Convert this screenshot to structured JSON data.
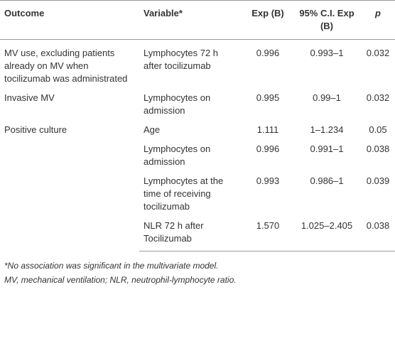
{
  "table": {
    "header": [
      "Outcome",
      "Variable*",
      "Exp (B)",
      "95% C.I. Exp (B)",
      "p"
    ],
    "groups": [
      {
        "outcome": "MV use, excluding patients already on MV when tocilizumab was administrated",
        "rows": [
          [
            "Lymphocytes 72 h after tocilizumab",
            "0.996",
            "0.993–1",
            "0.032"
          ]
        ]
      },
      {
        "outcome": "Invasive MV",
        "rows": [
          [
            "Lymphocytes on admission",
            "0.995",
            "0.99–1",
            "0.032"
          ]
        ]
      },
      {
        "outcome": "Positive culture",
        "rows": [
          [
            "Age",
            "1.111",
            "1–1.234",
            "0.05"
          ],
          [
            "Lymphocytes on admission",
            "0.996",
            "0.991–1",
            "0.038"
          ],
          [
            "Lymphocytes at the time of receiving tocilizumab",
            "0.993",
            "0.986–1",
            "0.039"
          ],
          [
            "NLR 72 h after Tocilizumab",
            "1.570",
            "1.025–2.405",
            "0.038"
          ]
        ]
      }
    ]
  },
  "footnotes": [
    "*No association was significant in the multivariate model.",
    "MV, mechanical ventilation; NLR, neutrophil-lymphocyte ratio."
  ]
}
